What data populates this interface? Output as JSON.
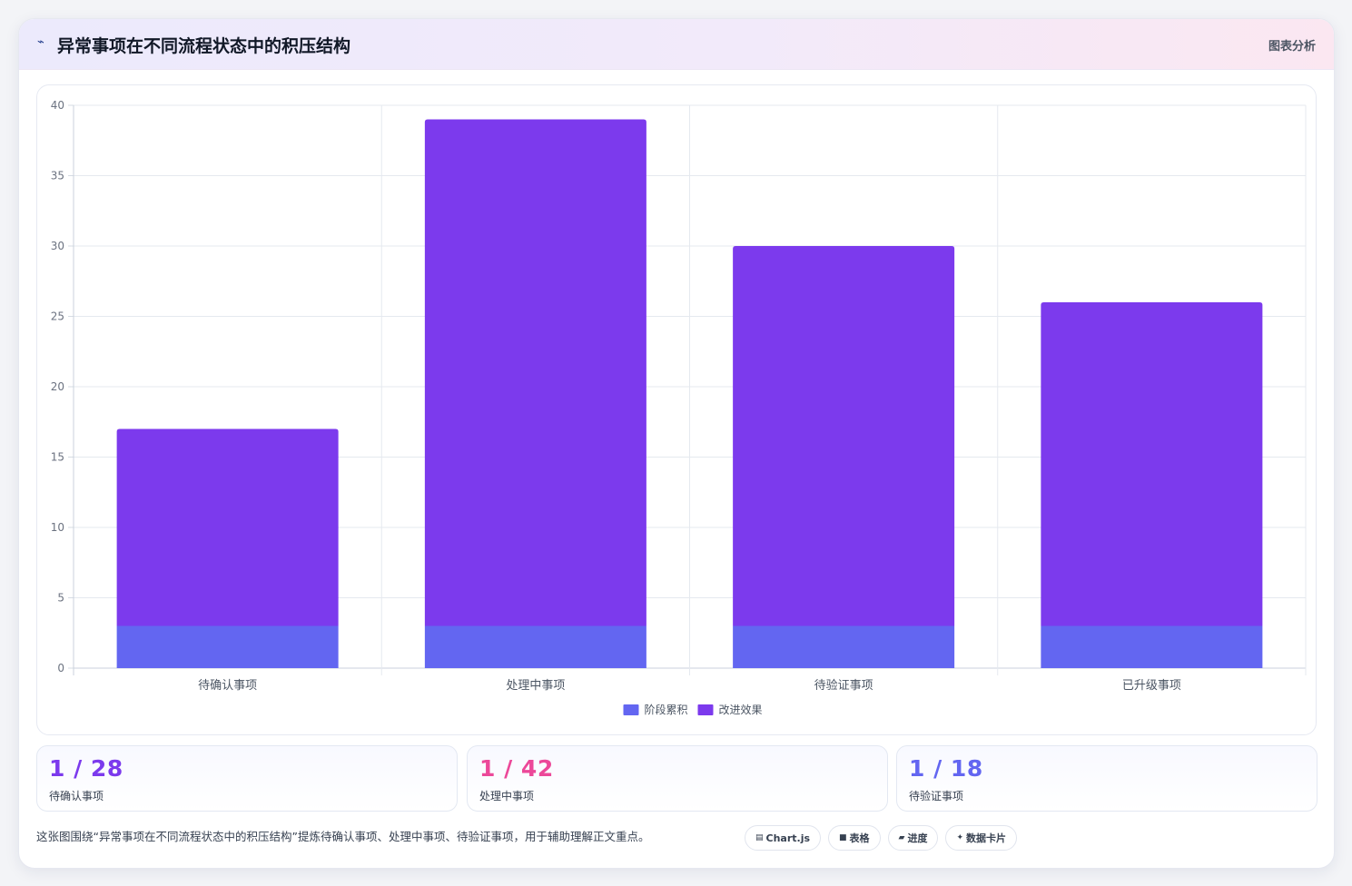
{
  "header": {
    "icon": "chart-line-icon",
    "title": "异常事项在不同流程状态中的积压结构",
    "tag": "图表分析"
  },
  "colors": {
    "series_base": "#6366f1",
    "series_top": "#7c3aed",
    "stat_1": "#7c3aed",
    "stat_2": "#ec4899",
    "stat_3": "#6366f1"
  },
  "chart_data": {
    "type": "bar",
    "stacked": true,
    "categories": [
      "待确认事项",
      "处理中事项",
      "待验证事项",
      "已升级事项"
    ],
    "series": [
      {
        "name": "阶段累积",
        "values": [
          3,
          3,
          3,
          3
        ],
        "color": "#6366f1"
      },
      {
        "name": "改进效果",
        "values": [
          14,
          36,
          27,
          23
        ],
        "color": "#7c3aed"
      }
    ],
    "title": "",
    "xlabel": "",
    "ylabel": "",
    "ylim": [
      0,
      40
    ],
    "yticks": [
      "0",
      "5",
      "10",
      "15",
      "20",
      "25",
      "30",
      "35",
      "40"
    ],
    "grid": true,
    "legend_position": "bottom"
  },
  "stats": [
    {
      "value": "1 / 28",
      "label": "待确认事项"
    },
    {
      "value": "1 / 42",
      "label": "处理中事项"
    },
    {
      "value": "1 / 18",
      "label": "待验证事项"
    }
  ],
  "summary": "这张图围绕“异常事项在不同流程状态中的积压结构”提炼待确认事项、处理中事项、待验证事项，用于辅助理解正文重点。",
  "chips": [
    {
      "icon": "chart-icon",
      "glyph": "▤",
      "label": "Chart.js"
    },
    {
      "icon": "table-icon",
      "glyph": "■",
      "label": "表格"
    },
    {
      "icon": "progress-icon",
      "glyph": "▰",
      "label": "进度"
    },
    {
      "icon": "sparkle-icon",
      "glyph": "✦",
      "label": "数据卡片"
    }
  ]
}
